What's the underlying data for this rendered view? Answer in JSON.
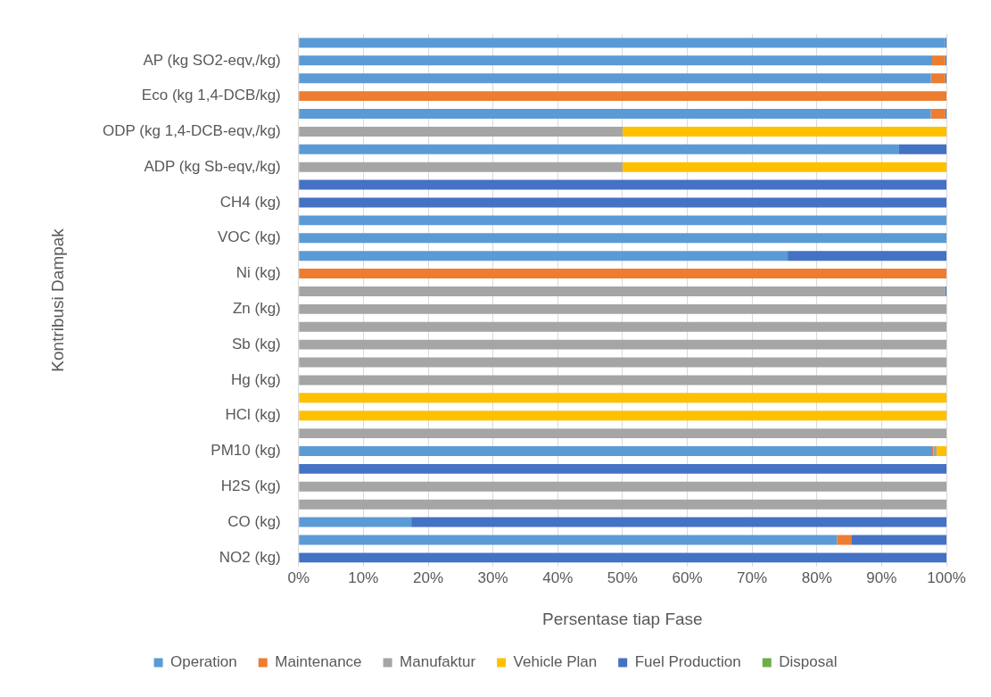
{
  "chart_data": {
    "type": "bar",
    "orientation": "horizontal",
    "stacked": true,
    "xlabel": "Persentase tiap Fase",
    "ylabel": "Kontribusi Dampak",
    "categories": [
      null,
      "AP (kg SO2-eqv,/kg)",
      null,
      "Eco (kg 1,4-DCB/kg)",
      null,
      "ODP (kg 1,4-DCB-eqv,/kg)",
      null,
      "ADP (kg Sb-eqv,/kg)",
      null,
      "CH4 (kg)",
      null,
      "VOC (kg)",
      null,
      "Ni (kg)",
      null,
      "Zn (kg)",
      null,
      "Sb (kg)",
      null,
      "Hg (kg)",
      null,
      "HCl (kg)",
      null,
      "PM10 (kg)",
      null,
      "H2S (kg)",
      null,
      "CO (kg)",
      null,
      "NO2 (kg)"
    ],
    "series": [
      {
        "name": "Operation",
        "color": "#5b9bd5",
        "values": [
          99.8,
          97.8,
          97.6,
          0,
          97.6,
          0,
          92.7,
          0,
          0,
          0,
          100,
          100,
          75.5,
          0,
          0,
          0,
          0,
          0,
          0,
          0,
          0,
          0,
          0,
          97.8,
          0,
          0,
          0,
          17.4,
          83.1,
          0
        ]
      },
      {
        "name": "Maintenance",
        "color": "#ed7d31",
        "values": [
          0,
          2,
          2.2,
          100,
          2.2,
          0,
          0,
          0,
          0,
          0,
          0,
          0,
          0,
          100,
          0,
          0,
          0,
          0,
          0,
          0,
          0,
          0,
          0,
          0.2,
          0,
          0,
          0,
          0,
          2.2,
          0
        ]
      },
      {
        "name": "Manufaktur",
        "color": "#a5a5a5",
        "values": [
          0,
          0,
          0,
          0,
          0,
          50,
          0,
          50,
          0,
          0,
          0,
          0,
          0,
          0,
          99.8,
          100,
          100,
          100,
          100,
          100,
          0,
          0,
          100,
          0.5,
          0,
          100,
          100,
          0,
          0,
          0
        ]
      },
      {
        "name": "Vehicle Plan",
        "color": "#ffc000",
        "values": [
          0,
          0,
          0,
          0,
          0,
          50,
          0,
          50,
          0,
          0,
          0,
          0,
          0,
          0,
          0,
          0,
          0,
          0,
          0,
          0,
          100,
          100,
          0,
          1.5,
          0,
          0,
          0,
          0,
          0,
          0
        ]
      },
      {
        "name": "Fuel Production",
        "color": "#4472c4",
        "values": [
          0.2,
          0.2,
          0.2,
          0,
          0.2,
          0,
          7.3,
          0,
          100,
          100,
          0,
          0,
          24.5,
          0,
          0.2,
          0,
          0,
          0,
          0,
          0,
          0,
          0,
          0,
          0,
          100,
          0,
          0,
          82.6,
          14.7,
          100
        ]
      },
      {
        "name": "Disposal",
        "color": "#70ad47",
        "values": [
          0,
          0,
          0,
          0,
          0,
          0,
          0,
          0,
          0,
          0,
          0,
          0,
          0,
          0,
          0,
          0,
          0,
          0,
          0,
          0,
          0,
          0,
          0,
          0,
          0,
          0,
          0,
          0,
          0,
          0
        ]
      }
    ],
    "xlim": [
      0,
      100
    ],
    "xticks": [
      {
        "value": 0,
        "label": "0%"
      },
      {
        "value": 10,
        "label": "10%"
      },
      {
        "value": 20,
        "label": "20%"
      },
      {
        "value": 30,
        "label": "30%"
      },
      {
        "value": 40,
        "label": "40%"
      },
      {
        "value": 50,
        "label": "50%"
      },
      {
        "value": 60,
        "label": "60%"
      },
      {
        "value": 70,
        "label": "70%"
      },
      {
        "value": 80,
        "label": "80%"
      },
      {
        "value": 90,
        "label": "90%"
      },
      {
        "value": 100,
        "label": "100%"
      }
    ],
    "grid": "x",
    "legend": "bottom"
  }
}
